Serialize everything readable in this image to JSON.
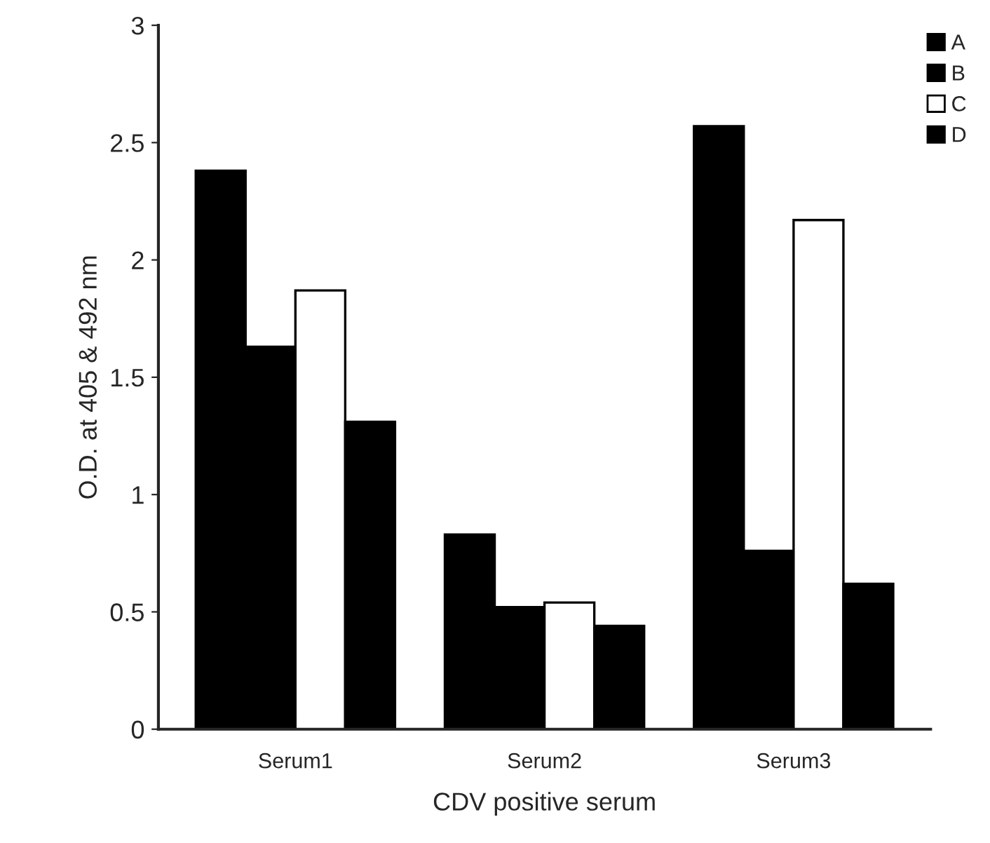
{
  "chart_data": {
    "type": "bar",
    "xlabel": "CDV positive serum",
    "ylabel": "O.D. at 405 & 492 nm",
    "categories": [
      "Serum1",
      "Serum2",
      "Serum3"
    ],
    "series": [
      {
        "name": "A",
        "color": "#000000",
        "values": [
          2.38,
          0.83,
          2.57
        ]
      },
      {
        "name": "B",
        "color": "#000000",
        "values": [
          1.63,
          0.52,
          0.76
        ]
      },
      {
        "name": "C",
        "color": "#ffffff",
        "values": [
          1.87,
          0.54,
          2.17
        ]
      },
      {
        "name": "D",
        "color": "#000000",
        "values": [
          1.31,
          0.44,
          0.62
        ]
      }
    ],
    "ylim": [
      0,
      3
    ],
    "yticks": [
      0,
      0.5,
      1,
      1.5,
      2,
      2.5,
      3
    ],
    "grid": false,
    "legend": "top right"
  }
}
